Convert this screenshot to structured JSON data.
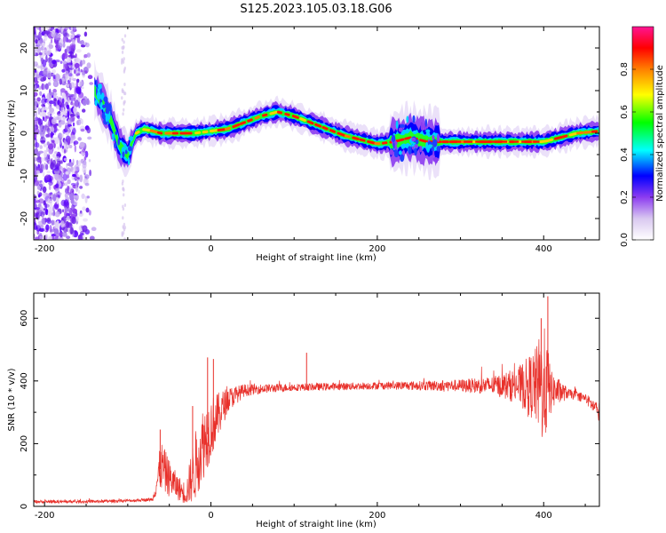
{
  "title": "S125.2023.105.03.18.G06",
  "chart_data": [
    {
      "type": "heatmap",
      "xlabel": "Height of straight line (km)",
      "ylabel": "Frequency (Hz)",
      "xlim": [
        -213,
        467
      ],
      "ylim": [
        -25,
        25
      ],
      "x_ticks": [
        -200,
        0,
        200,
        400
      ],
      "y_ticks": [
        -20,
        -10,
        0,
        10,
        20
      ],
      "colorbar": {
        "label": "Normalized spectral amplitude",
        "range": [
          0,
          1
        ],
        "ticks": [
          0.0,
          0.2,
          0.4,
          0.6,
          0.8
        ],
        "tick_labels": [
          "0.0",
          "0.2",
          "0.4",
          "0.6",
          "0.8"
        ],
        "colors": [
          "#ffffff",
          "#d9c8f0",
          "#8c3cf0",
          "#0000ff",
          "#00ffff",
          "#00ff00",
          "#ffff00",
          "#ff8000",
          "#ff0000",
          "#ff1493"
        ]
      },
      "ridge": {
        "x": [
          -140,
          -130,
          -120,
          -110,
          -100,
          -90,
          -80,
          -60,
          -40,
          -20,
          0,
          20,
          40,
          60,
          80,
          100,
          120,
          140,
          160,
          180,
          200,
          220,
          240,
          260,
          280,
          300,
          340,
          380,
          400,
          420,
          440,
          467
        ],
        "y": [
          10,
          7,
          3,
          -3,
          -5,
          0,
          1,
          0,
          0,
          0,
          0.5,
          1,
          2.5,
          4,
          5,
          4,
          2.5,
          1,
          -0.5,
          -1.5,
          -2.5,
          -2,
          -1,
          -2,
          -2,
          -2,
          -2,
          -2,
          -2,
          -1,
          0,
          0.5
        ]
      },
      "noise_region": {
        "x": [
          -213,
          -140
        ],
        "y": [
          -25,
          25
        ]
      }
    },
    {
      "type": "line",
      "xlabel": "Height of straight line (km)",
      "ylabel": "SNR (10 * v/v)",
      "xlim": [
        -213,
        467
      ],
      "ylim": [
        0,
        680
      ],
      "x_ticks": [
        -200,
        0,
        200,
        400
      ],
      "y_ticks": [
        0,
        200,
        400,
        600
      ],
      "color": "#e8302a",
      "envelope": {
        "x": [
          -213,
          -150,
          -100,
          -70,
          -60,
          -50,
          -40,
          -30,
          -20,
          -10,
          0,
          20,
          40,
          60,
          100,
          150,
          200,
          250,
          300,
          340,
          370,
          390,
          400,
          410,
          430,
          450,
          467
        ],
        "y": [
          15,
          15,
          18,
          22,
          130,
          90,
          60,
          40,
          120,
          200,
          250,
          340,
          370,
          375,
          380,
          382,
          385,
          385,
          385,
          385,
          385,
          385,
          385,
          370,
          360,
          345,
          300
        ],
        "spread": [
          5,
          5,
          5,
          5,
          80,
          60,
          40,
          35,
          110,
          120,
          100,
          40,
          20,
          15,
          12,
          12,
          12,
          15,
          20,
          30,
          60,
          120,
          200,
          60,
          15,
          15,
          30
        ]
      },
      "spikes": [
        {
          "x": -61,
          "y": 245
        },
        {
          "x": -22,
          "y": 320
        },
        {
          "x": -4,
          "y": 475
        },
        {
          "x": 3,
          "y": 470
        },
        {
          "x": 115,
          "y": 490
        },
        {
          "x": 405,
          "y": 670
        },
        {
          "x": 397,
          "y": 600
        }
      ]
    }
  ]
}
